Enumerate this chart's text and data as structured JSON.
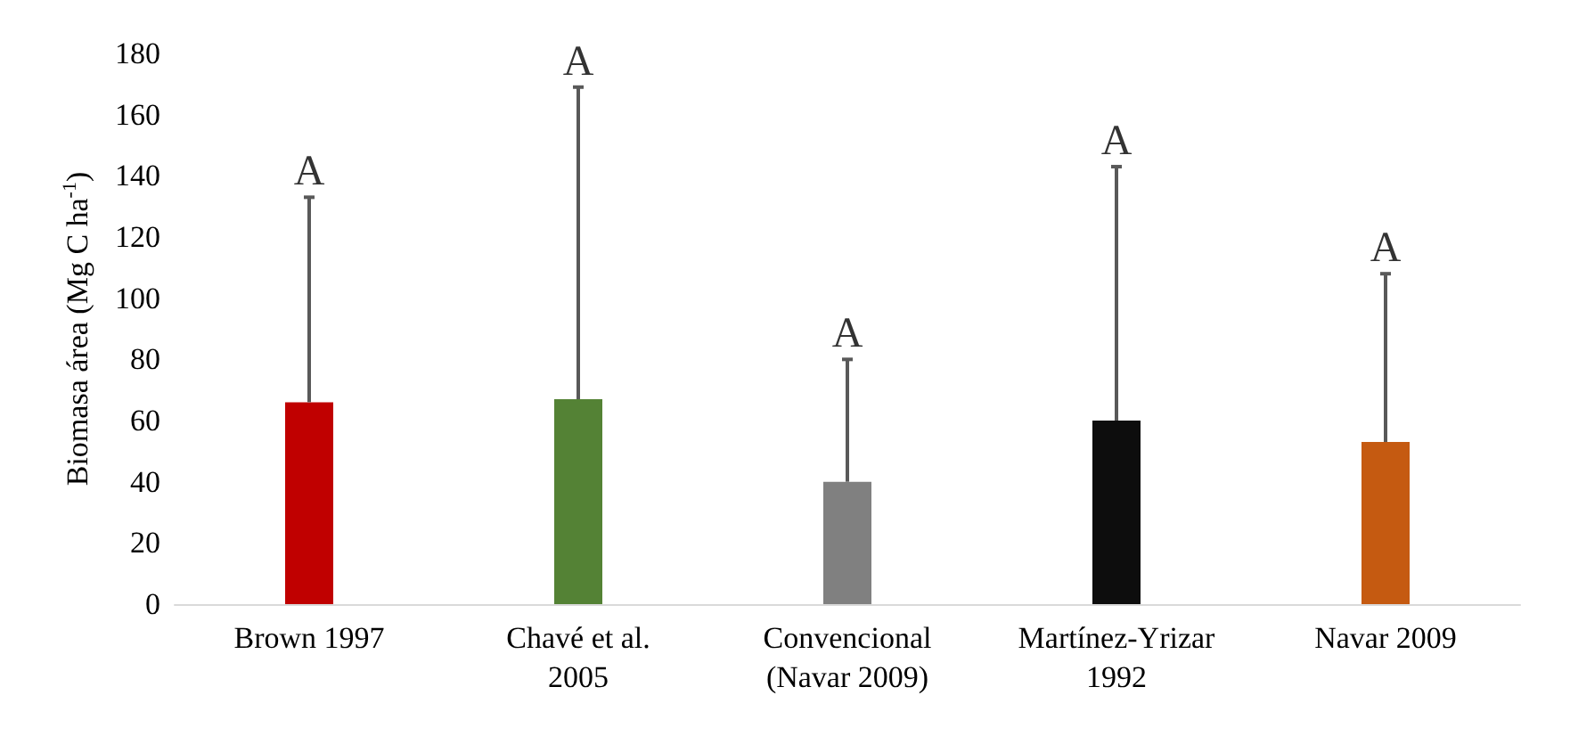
{
  "chart_data": {
    "type": "bar",
    "ylabel": "Biomasa área (Mg C ha$^{-1}$)",
    "categories": [
      "Brown 1997",
      "Chavé et al.\n2005",
      "Convencional\n(Navar 2009)",
      "Martínez-Yrizar\n1992",
      "Navar 2009"
    ],
    "values": [
      66,
      67,
      40,
      60,
      53
    ],
    "colors": [
      "#c00000",
      "#548235",
      "#808080",
      "#0d0d0d",
      "#c55a11"
    ],
    "errors": [
      [
        66,
        133
      ],
      [
        67,
        169
      ],
      [
        40,
        80
      ],
      [
        60,
        143
      ],
      [
        53,
        108
      ]
    ],
    "annotations": [
      {
        "text": "A",
        "x": "Brown 1997",
        "y": 133
      },
      {
        "text": "A",
        "x": "Chavé et al.\n2005",
        "y": 169
      },
      {
        "text": "A",
        "x": "Convencional\n(Navar 2009)",
        "y": 80
      },
      {
        "text": "A",
        "x": "Martínez-Yrizar\n1992",
        "y": 143
      },
      {
        "text": "A",
        "x": "Navar 2009",
        "y": 108
      }
    ],
    "ylim": [
      0,
      180
    ],
    "yticks": [
      0,
      20,
      40,
      60,
      80,
      100,
      120,
      140,
      160,
      180
    ],
    "grid": false
  }
}
